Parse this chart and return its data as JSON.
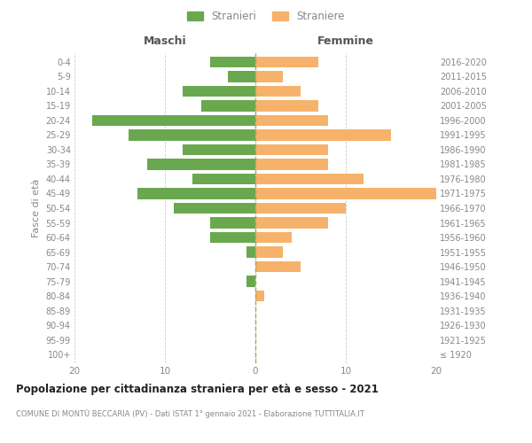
{
  "age_groups": [
    "100+",
    "95-99",
    "90-94",
    "85-89",
    "80-84",
    "75-79",
    "70-74",
    "65-69",
    "60-64",
    "55-59",
    "50-54",
    "45-49",
    "40-44",
    "35-39",
    "30-34",
    "25-29",
    "20-24",
    "15-19",
    "10-14",
    "5-9",
    "0-4"
  ],
  "birth_years": [
    "≤ 1920",
    "1921-1925",
    "1926-1930",
    "1931-1935",
    "1936-1940",
    "1941-1945",
    "1946-1950",
    "1951-1955",
    "1956-1960",
    "1961-1965",
    "1966-1970",
    "1971-1975",
    "1976-1980",
    "1981-1985",
    "1986-1990",
    "1991-1995",
    "1996-2000",
    "2001-2005",
    "2006-2010",
    "2011-2015",
    "2016-2020"
  ],
  "males": [
    0,
    0,
    0,
    0,
    0,
    1,
    0,
    1,
    5,
    5,
    9,
    13,
    7,
    12,
    8,
    14,
    18,
    6,
    8,
    3,
    5
  ],
  "females": [
    0,
    0,
    0,
    0,
    1,
    0,
    5,
    3,
    4,
    8,
    10,
    20,
    12,
    8,
    8,
    15,
    8,
    7,
    5,
    3,
    7
  ],
  "male_color": "#6aa84f",
  "female_color": "#f6b26b",
  "background_color": "#ffffff",
  "grid_color": "#cccccc",
  "bar_height": 0.75,
  "xlim": 20,
  "title": "Popolazione per cittadinanza straniera per età e sesso - 2021",
  "subtitle": "COMUNE DI MONTÜ BECCARIA (PV) - Dati ISTAT 1° gennaio 2021 - Elaborazione TUTTITALIA.IT",
  "xlabel_left": "Maschi",
  "xlabel_right": "Femmine",
  "ylabel_left": "Fasce di età",
  "legend_male": "Stranieri",
  "legend_female": "Straniere",
  "center_line_color": "#aaa855",
  "tick_color": "#999999",
  "label_color": "#888888",
  "title_color": "#222222",
  "header_color": "#555555"
}
